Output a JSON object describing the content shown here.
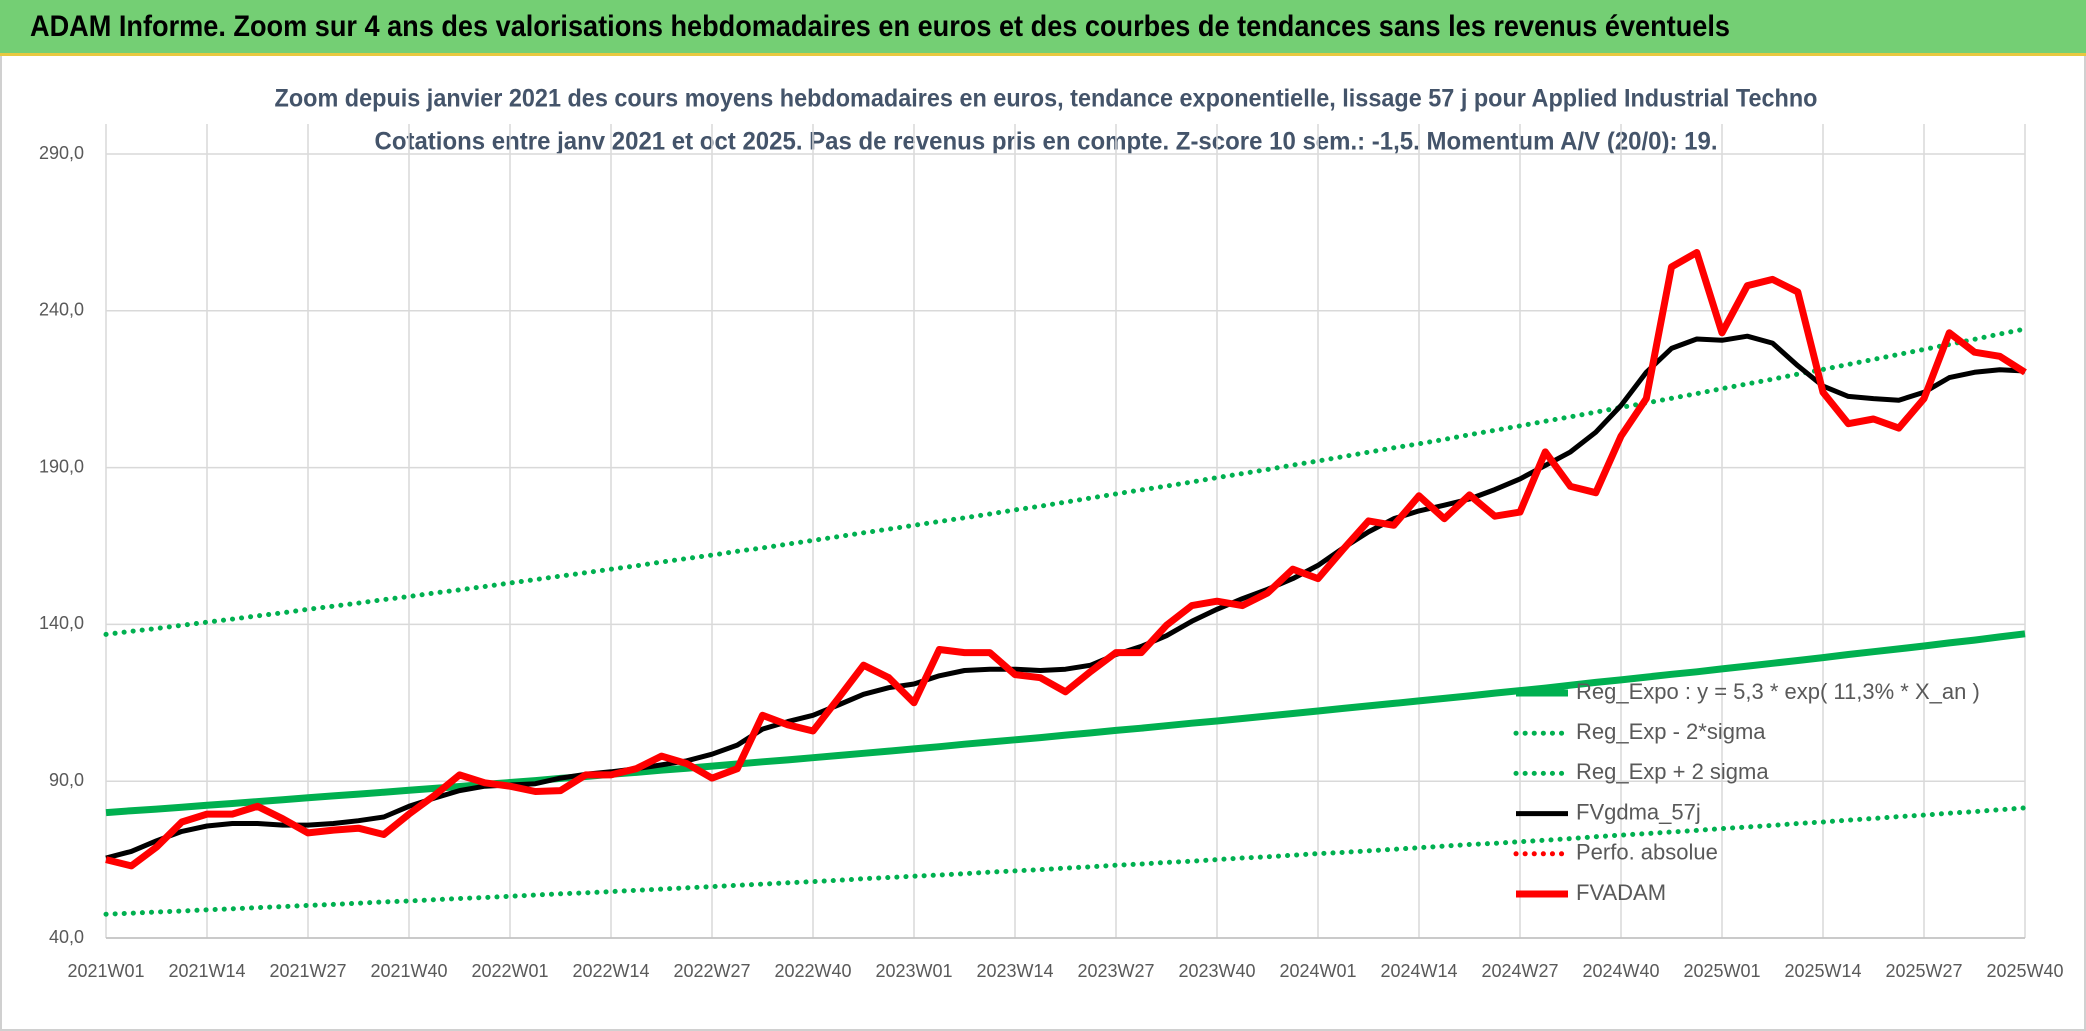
{
  "chart_data": {
    "type": "line",
    "title": "ADAM Informe. Zoom sur 4 ans des valorisations hebdomadaires en euros et des courbes de tendances sans les revenus éventuels",
    "subtitle": [
      "Zoom depuis janvier 2021 des cours moyens hebdomadaires en euros, tendance exponentielle, lissage 57 j pour Applied Industrial Techno",
      "Cotations entre janv 2021 et oct 2025. Pas de revenus pris en compte. Z-score 10 sem.: -1,5. Momentum A/V (20/0): 19."
    ],
    "categories": [
      "2021W01",
      null,
      null,
      null,
      "2021W14",
      null,
      null,
      null,
      "2021W27",
      null,
      null,
      null,
      "2021W40",
      null,
      null,
      null,
      "2022W01",
      null,
      null,
      null,
      "2022W14",
      null,
      null,
      null,
      "2022W27",
      null,
      null,
      null,
      "2022W40",
      null,
      null,
      null,
      "2023W01",
      null,
      null,
      null,
      "2023W14",
      null,
      null,
      null,
      "2023W27",
      null,
      null,
      null,
      "2023W40",
      null,
      null,
      null,
      "2024W01",
      null,
      null,
      null,
      "2024W14",
      null,
      null,
      null,
      "2024W27",
      null,
      null,
      null,
      "2024W40",
      null,
      null,
      null,
      "2025W01",
      null,
      null,
      null,
      "2025W14",
      null,
      null,
      null,
      "2025W27",
      null,
      null,
      null,
      "2025W40"
    ],
    "series": [
      {
        "name": "Reg_Expo : y = 5,3 * exp( 11,3% *  X_an )",
        "color": "#00b050",
        "style": "solid",
        "values": [
          80.0,
          80.6,
          81.1,
          81.7,
          82.3,
          82.9,
          83.5,
          84.1,
          84.7,
          85.3,
          85.9,
          86.5,
          87.1,
          87.7,
          88.3,
          89.0,
          89.6,
          90.2,
          90.9,
          91.5,
          92.2,
          92.8,
          93.5,
          94.1,
          94.8,
          95.5,
          96.2,
          96.8,
          97.5,
          98.2,
          98.9,
          99.6,
          100.3,
          101.0,
          101.8,
          102.5,
          103.2,
          103.9,
          104.7,
          105.4,
          106.2,
          106.9,
          107.7,
          108.5,
          109.2,
          110.0,
          110.8,
          111.6,
          112.4,
          113.2,
          114.0,
          114.8,
          115.6,
          116.4,
          117.2,
          118.1,
          118.9,
          119.7,
          120.6,
          121.5,
          122.3,
          123.2,
          124.1,
          124.9,
          125.8,
          126.7,
          127.6,
          128.5,
          129.4,
          130.4,
          131.3,
          132.2,
          133.1,
          134.1,
          135.0,
          136.0,
          137.0
        ]
      },
      {
        "name": "Reg_Exp - 2*sigma",
        "color": "#00b050",
        "style": "dotted",
        "values": [
          47.6,
          47.9,
          48.3,
          48.6,
          49.0,
          49.3,
          49.7,
          50.0,
          50.4,
          50.7,
          51.1,
          51.5,
          51.8,
          52.2,
          52.6,
          52.9,
          53.3,
          53.7,
          54.1,
          54.4,
          54.8,
          55.2,
          55.6,
          56.0,
          56.4,
          56.8,
          57.2,
          57.6,
          58.0,
          58.4,
          58.9,
          59.3,
          59.7,
          60.1,
          60.5,
          61.0,
          61.4,
          61.8,
          62.3,
          62.7,
          63.2,
          63.6,
          64.1,
          64.5,
          65.0,
          65.5,
          65.9,
          66.4,
          66.9,
          67.3,
          67.8,
          68.3,
          68.8,
          69.3,
          69.8,
          70.2,
          70.7,
          71.2,
          71.7,
          72.3,
          72.8,
          73.3,
          73.8,
          74.3,
          74.9,
          75.4,
          75.9,
          76.5,
          77.0,
          77.6,
          78.1,
          78.7,
          79.2,
          79.8,
          80.3,
          80.9,
          81.5
        ]
      },
      {
        "name": "Reg_Exp + 2 sigma",
        "color": "#00b050",
        "style": "dotted",
        "values": [
          136.8,
          137.8,
          138.7,
          139.7,
          140.7,
          141.7,
          142.7,
          143.7,
          144.8,
          145.8,
          146.8,
          147.9,
          148.9,
          150.0,
          151.0,
          152.1,
          153.2,
          154.3,
          155.4,
          156.5,
          157.6,
          158.7,
          159.9,
          161.0,
          162.1,
          163.3,
          164.4,
          165.6,
          166.8,
          168.0,
          169.2,
          170.4,
          171.6,
          172.8,
          174.0,
          175.2,
          176.5,
          177.7,
          179.0,
          180.3,
          181.6,
          182.9,
          184.1,
          185.4,
          186.8,
          188.1,
          189.4,
          190.8,
          192.1,
          193.5,
          194.9,
          196.3,
          197.6,
          199.0,
          200.5,
          201.9,
          203.3,
          204.8,
          206.2,
          207.7,
          209.2,
          210.6,
          212.1,
          213.6,
          215.2,
          216.7,
          218.2,
          219.8,
          221.3,
          222.9,
          224.5,
          226.1,
          227.7,
          229.3,
          230.9,
          232.6,
          234.2
        ]
      },
      {
        "name": "FVgdma_57j",
        "color": "#000000",
        "style": "solid",
        "values": [
          65.5,
          67.6,
          71,
          74,
          75.7,
          76.5,
          76.5,
          76,
          76,
          76.5,
          77.4,
          78.6,
          82,
          84.6,
          87,
          88.4,
          88.8,
          89.2,
          91,
          92.2,
          93,
          94,
          95.2,
          96.5,
          98.6,
          101.5,
          106.6,
          109,
          111,
          114.3,
          117.7,
          119.8,
          121,
          123.6,
          125.3,
          125.7,
          125.7,
          125.3,
          125.7,
          127,
          130.4,
          133,
          136.4,
          141,
          144.8,
          148.2,
          151.2,
          154.6,
          158.8,
          164.4,
          169.5,
          173.7,
          176.2,
          178,
          180,
          183,
          186.4,
          190.7,
          195,
          201.3,
          209.8,
          220.4,
          228,
          231,
          230.6,
          231.9,
          229.7,
          222.5,
          216,
          212.7,
          212,
          211.5,
          214,
          218.7,
          220.4,
          221.2,
          220.8
        ]
      },
      {
        "name": "Perfo. absolue",
        "color": "#ff0000",
        "style": "dotted",
        "values": [
          null,
          null,
          null,
          null,
          null,
          null,
          null,
          null,
          null,
          null,
          null,
          null,
          null,
          null,
          null,
          null,
          null,
          null,
          null,
          null,
          null,
          null,
          null,
          null,
          null,
          null,
          null,
          null,
          null,
          null,
          null,
          null,
          null,
          null,
          null,
          null,
          null,
          null,
          null,
          null,
          null,
          null,
          null,
          null,
          null,
          null,
          null,
          null,
          null,
          null,
          null,
          null,
          null,
          null,
          null,
          null,
          null,
          null,
          null,
          null,
          null,
          null,
          null,
          null,
          null,
          null,
          null,
          null,
          null,
          null,
          null,
          null,
          null,
          null,
          null,
          null,
          null
        ]
      },
      {
        "name": "FVADAM",
        "color": "#ff0000",
        "style": "solid",
        "values": [
          65,
          63,
          69,
          77,
          79.5,
          79.5,
          82,
          78,
          73.5,
          74.4,
          75,
          73,
          79.5,
          85.4,
          92,
          89.5,
          88.4,
          86.7,
          87,
          92,
          92,
          94,
          98,
          95.6,
          91,
          94,
          111,
          108,
          106,
          116.4,
          127,
          123,
          115,
          132,
          131,
          131,
          124,
          123,
          118.5,
          125,
          131,
          131,
          139.7,
          146,
          147.4,
          146,
          150,
          157.6,
          154.6,
          164,
          173,
          171.6,
          181,
          173.7,
          181.3,
          174.5,
          175.8,
          195,
          184,
          182,
          200,
          212,
          254,
          258.6,
          233,
          248,
          250,
          246,
          214,
          204,
          205.5,
          202.6,
          212,
          233,
          226.8,
          225.5,
          220.4
        ]
      }
    ],
    "ylim": [
      40,
      290
    ],
    "yticks": [
      {
        "value": 40,
        "label": "40,0"
      },
      {
        "value": 90,
        "label": "90,0"
      },
      {
        "value": 140,
        "label": "140,0"
      },
      {
        "value": 190,
        "label": "190,0"
      },
      {
        "value": 240,
        "label": "240,0"
      },
      {
        "value": 290,
        "label": "290,0"
      }
    ],
    "grid": true,
    "legend": "right"
  }
}
